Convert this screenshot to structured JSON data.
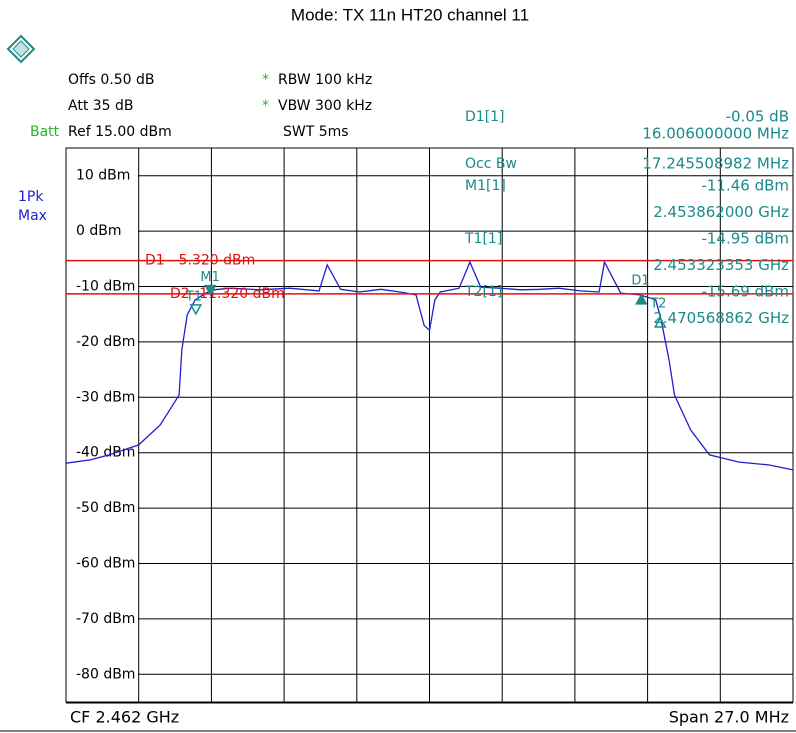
{
  "chart_data": {
    "type": "line",
    "title": "Mode: TX 11n HT20 channel 11",
    "settings_left": [
      "Offs 0.50 dB",
      "Att 35 dB",
      "Ref 15.00 dBm"
    ],
    "batt": "Batt",
    "settings_mid": [
      {
        "star": "*",
        "text": "RBW 100 kHz"
      },
      {
        "star": "*",
        "text": "VBW 300 kHz"
      },
      {
        "text": "SWT 5ms"
      }
    ],
    "trace_label": [
      "1Pk",
      "Max"
    ],
    "readouts": [
      {
        "name": "D1[1]",
        "value": "-0.05 dB",
        "detail": "16.006000000 MHz"
      },
      {
        "name": "Occ Bw",
        "value": "17.245508982 MHz"
      },
      {
        "name": "M1[1]",
        "value": "-11.46 dBm",
        "detail": "2.453862000 GHz"
      },
      {
        "name": "T1[1]",
        "value": "-14.95 dBm",
        "detail": "2.453323353 GHz"
      },
      {
        "name": "T2[1]",
        "value": "-15.69 dBm",
        "detail": "2.470568862 GHz"
      }
    ],
    "footer_left": "CF 2.462 GHz",
    "footer_right": "Span 27.0 MHz",
    "xlim": [
      2.4485,
      2.4755
    ],
    "ylim": [
      -85,
      15
    ],
    "yticks": [
      {
        "value": 10,
        "label": "10 dBm"
      },
      {
        "value": 0,
        "label": "0 dBm"
      },
      {
        "value": -10,
        "label": "-10 dBm"
      },
      {
        "value": -20,
        "label": "-20 dBm"
      },
      {
        "value": -30,
        "label": "-30 dBm"
      },
      {
        "value": -40,
        "label": "-40 dBm"
      },
      {
        "value": -50,
        "label": "-50 dBm"
      },
      {
        "value": -60,
        "label": "-60 dBm"
      },
      {
        "value": -70,
        "label": "-70 dBm"
      },
      {
        "value": -80,
        "label": "-80 dBm"
      }
    ],
    "grid": true,
    "series": [
      {
        "color": "#1f1fd0",
        "x": [
          2.4485,
          2.4494,
          2.4501,
          2.4512,
          2.452,
          2.4527,
          2.4528,
          2.453,
          2.4533,
          2.4537,
          2.454,
          2.4546,
          2.4557,
          2.4568,
          2.4579,
          2.4582,
          2.4587,
          2.4594,
          2.4602,
          2.4609,
          2.4615,
          2.4618,
          2.462,
          2.4622,
          2.4624,
          2.4631,
          2.4635,
          2.4639,
          2.4646,
          2.4654,
          2.4661,
          2.4668,
          2.4676,
          2.4683,
          2.4685,
          2.4691,
          2.4698,
          2.4704,
          2.4706,
          2.4709,
          2.4711,
          2.4717,
          2.4724,
          2.4735,
          2.4746,
          2.4755
        ],
        "values": [
          -41.9,
          -41.3,
          -40.4,
          -38.6,
          -35,
          -29.6,
          -21.5,
          -15.1,
          -12.4,
          -11.2,
          -10.6,
          -10.3,
          -10.6,
          -10.3,
          -10.8,
          -6.1,
          -10.5,
          -11.0,
          -10.5,
          -11.0,
          -11.5,
          -17.0,
          -17.9,
          -12.4,
          -11.0,
          -10.3,
          -5.6,
          -10.1,
          -10.3,
          -10.6,
          -10.5,
          -10.3,
          -10.8,
          -11.0,
          -5.6,
          -11.2,
          -11.5,
          -12.4,
          -16.0,
          -23.3,
          -29.6,
          -35.9,
          -40.4,
          -41.7,
          -42.2,
          -43.1
        ]
      }
    ],
    "display_lines": [
      {
        "label": "D1  -5.320 dBm",
        "value": -5.32
      },
      {
        "label": "D2 -11.320 dBm",
        "value": -11.32
      }
    ],
    "markers": [
      {
        "label": "M1",
        "x": 2.453862,
        "y": -11.46,
        "shape": "down"
      },
      {
        "label": "T1",
        "x": 2.453323,
        "y": -14.95,
        "shape": "down-open"
      },
      {
        "label": "D1",
        "x": 2.469868,
        "y": -11.51,
        "shape": "up"
      },
      {
        "label": "T2",
        "x": 2.470569,
        "y": -15.69,
        "shape": "up-open"
      }
    ]
  }
}
